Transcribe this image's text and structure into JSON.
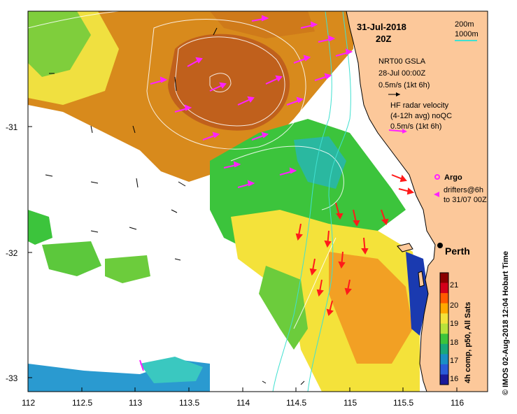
{
  "title": {
    "date": "31-Jul-2018",
    "time": "20Z"
  },
  "contour_legend": {
    "c1": "200m",
    "c2": "1000m"
  },
  "gsla": {
    "line1": "NRT00 GSLA",
    "line2": "28-Jul 00:00Z",
    "scale": "0.5m/s (1kt 6h)"
  },
  "radar": {
    "line1": "HF radar velocity",
    "line2": "(4-12h avg) noQC",
    "scale": "0.5m/s (1kt 6h)"
  },
  "argo": {
    "label": "Argo"
  },
  "drifters": {
    "line1": "drifters@6h",
    "line2": "to 31/07 00Z"
  },
  "city": {
    "name": "Perth"
  },
  "colorbar": {
    "ticks": [
      "21",
      "20",
      "19",
      "18",
      "17",
      "16"
    ],
    "label": "4h comp, p50, All Sats",
    "colors": [
      "#8b0000",
      "#d4001a",
      "#ff5a00",
      "#ffa800",
      "#f4e23a",
      "#b8e23a",
      "#3cc43c",
      "#1aa87a",
      "#1a8fc4",
      "#2a5ad8",
      "#1a1a9a"
    ]
  },
  "credit": "© IMOS 02-Aug-2018 12:04 Hobart Time",
  "x_ticks": [
    "112",
    "112.5",
    "113",
    "113.5",
    "114",
    "114.5",
    "115",
    "115.5",
    "116"
  ],
  "y_ticks": [
    "-31",
    "-32",
    "-33"
  ],
  "colors": {
    "land": "#fcc89a",
    "radar_arrow": "#ff22ff",
    "alt_arrow": "#ff1a1a",
    "contour": "#40e0d0"
  }
}
